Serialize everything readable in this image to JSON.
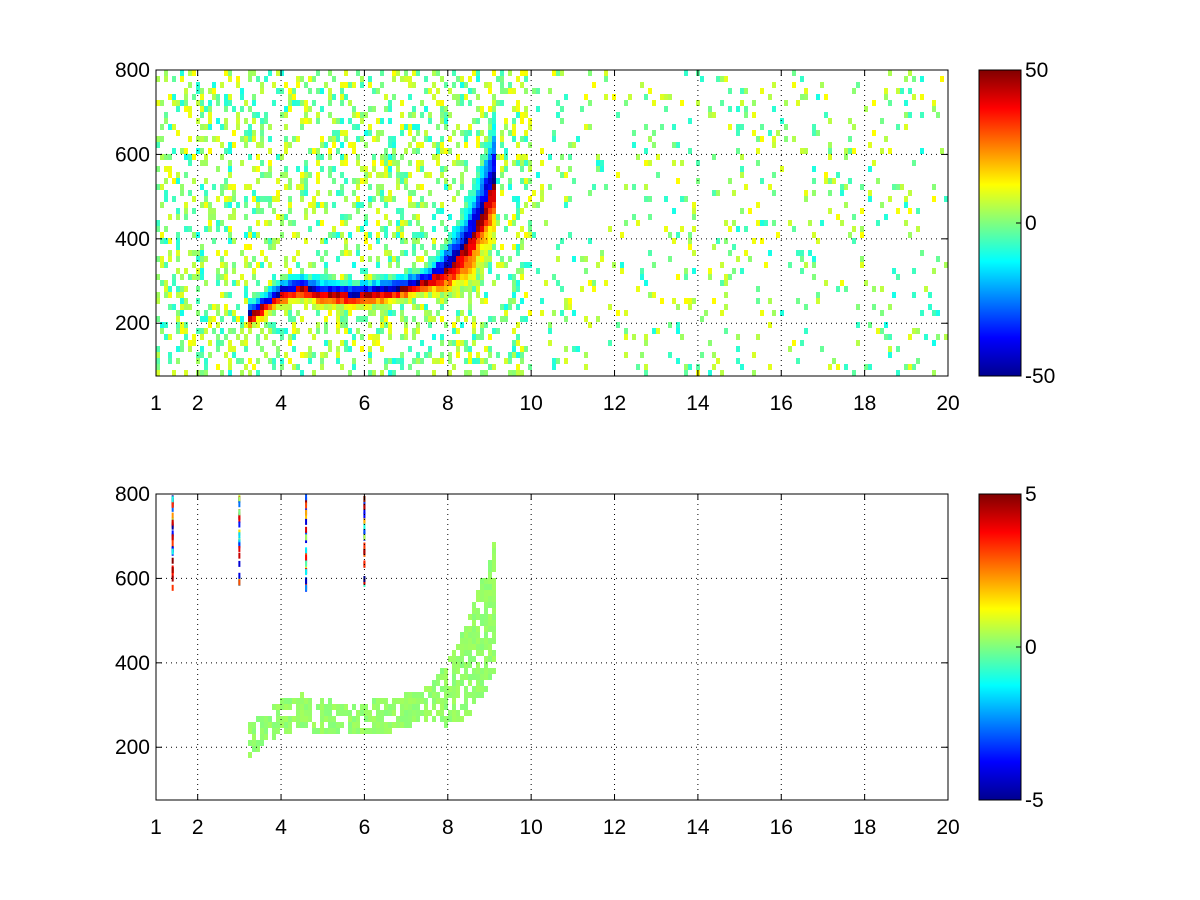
{
  "chart_data": [
    {
      "type": "heatmap",
      "colormap": "jet",
      "background": "#ffffff",
      "grid": true,
      "grid_style": "dotted",
      "xlim": [
        1,
        20
      ],
      "ylim": [
        75,
        800
      ],
      "xticks": [
        1,
        2,
        4,
        6,
        8,
        10,
        12,
        14,
        16,
        18,
        20
      ],
      "yticks": [
        200,
        400,
        600,
        800
      ],
      "clim": [
        -50,
        50
      ],
      "colorbar_ticks": [
        50,
        0,
        -50
      ],
      "features": {
        "ridge_points": [
          [
            3.2,
            215
          ],
          [
            4.0,
            270
          ],
          [
            4.5,
            285
          ],
          [
            5.0,
            272
          ],
          [
            5.8,
            265
          ],
          [
            6.5,
            275
          ],
          [
            7.0,
            285
          ],
          [
            7.5,
            300
          ],
          [
            8.0,
            330
          ],
          [
            8.3,
            360
          ],
          [
            8.6,
            410
          ],
          [
            8.9,
            480
          ],
          [
            9.2,
            560
          ]
        ],
        "ridge_peak_magnitude": 50,
        "noise_density": "high",
        "noise_magnitude": 12
      }
    },
    {
      "type": "heatmap",
      "colormap": "jet",
      "background": "#ffffff",
      "grid": true,
      "grid_style": "dotted",
      "xlim": [
        1,
        20
      ],
      "ylim": [
        75,
        800
      ],
      "xticks": [
        1,
        2,
        4,
        6,
        8,
        10,
        12,
        14,
        16,
        18,
        20
      ],
      "yticks": [
        200,
        400,
        600,
        800
      ],
      "clim": [
        -5,
        5
      ],
      "colorbar_ticks": [
        5,
        0,
        -5
      ],
      "features": {
        "ridge_points": [
          [
            3.2,
            215
          ],
          [
            4.0,
            270
          ],
          [
            4.5,
            285
          ],
          [
            5.0,
            272
          ],
          [
            5.8,
            265
          ],
          [
            6.5,
            275
          ],
          [
            7.0,
            285
          ],
          [
            7.5,
            300
          ],
          [
            8.0,
            330
          ],
          [
            8.3,
            360
          ],
          [
            8.6,
            410
          ],
          [
            8.9,
            480
          ],
          [
            9.2,
            560
          ]
        ],
        "ridge_value": 0.2,
        "noise_density": "none",
        "vertical_streaks_x": [
          1.4,
          3.0,
          4.6,
          6.0
        ],
        "streak_magnitude": 5
      }
    }
  ]
}
